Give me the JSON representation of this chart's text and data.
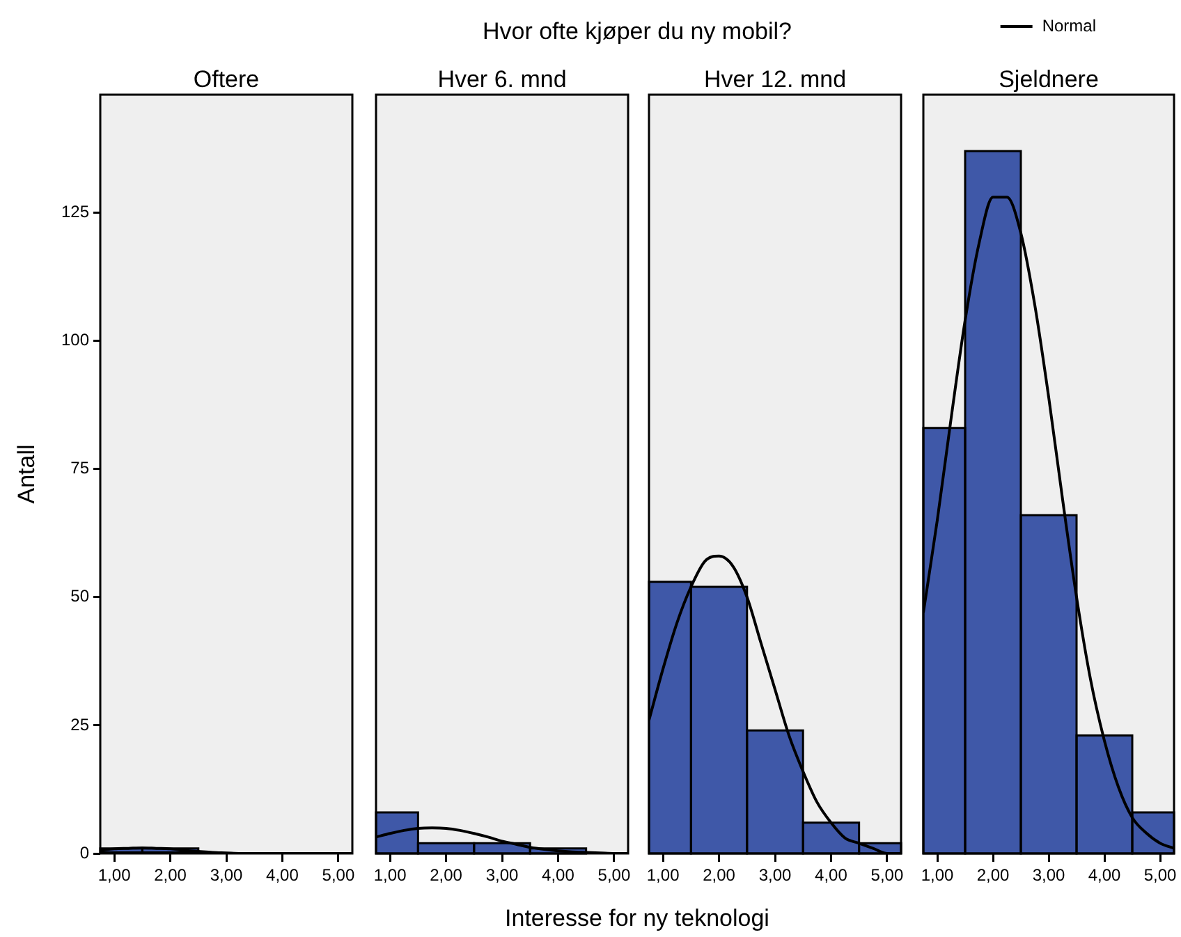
{
  "chart_data": [
    {
      "type": "histogram",
      "title": "Oftere",
      "ylabel": "Antall",
      "annotations": [
        "Hvor ofte kjøper du ny mobil?",
        "Interesse for ny teknologi"
      ],
      "bins": [
        0.75,
        1.5,
        2.5,
        3.5,
        4.5,
        5.25
      ],
      "xlim": [
        0.75,
        5.25
      ],
      "xticks": [
        {
          "value": 1,
          "label": "1,00"
        },
        {
          "value": 2,
          "label": "2,00"
        },
        {
          "value": 3,
          "label": "3,00"
        },
        {
          "value": 4,
          "label": "4,00"
        },
        {
          "value": 5,
          "label": "5,00"
        }
      ],
      "ylim": [
        0,
        148
      ],
      "yticks": [
        0,
        25,
        50,
        75,
        100,
        125
      ],
      "series": [
        {
          "color": "#3f58a8",
          "values": [
            1,
            1,
            0,
            0,
            0
          ]
        },
        {
          "type": "line",
          "color": "#000000",
          "x": [
            0.75,
            1,
            1.25,
            1.5,
            1.75,
            2,
            2.25,
            2.5,
            2.75,
            3,
            3.25,
            3.5,
            3.75,
            4,
            4.25,
            4.5,
            4.75,
            5,
            5.25
          ],
          "values": [
            0.6,
            0.9,
            1.0,
            1.1,
            1.0,
            0.9,
            0.6,
            0.4,
            0.2,
            0.1,
            0,
            0,
            0,
            0,
            0,
            0,
            0,
            0,
            0
          ]
        }
      ]
    },
    {
      "type": "histogram",
      "title": "Hver 6. mnd",
      "bins": [
        0.75,
        1.5,
        2.5,
        3.5,
        4.5,
        5.25
      ],
      "xlim": [
        0.75,
        5.25
      ],
      "xticks": [
        {
          "value": 1,
          "label": "1,00"
        },
        {
          "value": 2,
          "label": "2,00"
        },
        {
          "value": 3,
          "label": "3,00"
        },
        {
          "value": 4,
          "label": "4,00"
        },
        {
          "value": 5,
          "label": "5,00"
        }
      ],
      "ylim": [
        0,
        148
      ],
      "tick_labels": "x",
      "series": [
        {
          "color": "#3f58a8",
          "values": [
            8,
            2,
            2,
            1,
            0
          ]
        },
        {
          "type": "line",
          "color": "#000000",
          "x": [
            0.75,
            1,
            1.25,
            1.5,
            1.75,
            2,
            2.25,
            2.5,
            2.75,
            3,
            3.25,
            3.5,
            3.75,
            4,
            4.25,
            4.5,
            4.75,
            5,
            5.25
          ],
          "values": [
            3.2,
            3.9,
            4.5,
            4.9,
            5,
            4.9,
            4.5,
            3.9,
            3.2,
            2.4,
            1.8,
            1.2,
            0.8,
            0.5,
            0.3,
            0.2,
            0.1,
            0,
            0
          ]
        }
      ]
    },
    {
      "type": "histogram",
      "title": "Hver 12. mnd",
      "bins": [
        0.75,
        1.5,
        2.5,
        3.5,
        4.5,
        5.25
      ],
      "xlim": [
        0.75,
        5.25
      ],
      "xticks": [
        {
          "value": 1,
          "label": "1,00"
        },
        {
          "value": 2,
          "label": "2,00"
        },
        {
          "value": 3,
          "label": "3,00"
        },
        {
          "value": 4,
          "label": "4,00"
        },
        {
          "value": 5,
          "label": "5,00"
        }
      ],
      "ylim": [
        0,
        148
      ],
      "tick_labels": "x",
      "series": [
        {
          "color": "#3f58a8",
          "values": [
            53,
            52,
            24,
            6,
            2
          ]
        },
        {
          "type": "line",
          "color": "#000000",
          "x": [
            0.75,
            1,
            1.25,
            1.5,
            1.75,
            2,
            2.25,
            2.5,
            2.75,
            3,
            3.25,
            3.5,
            3.75,
            4,
            4.25,
            4.5,
            4.75,
            5,
            5.25
          ],
          "values": [
            26,
            36,
            45,
            52,
            57,
            58,
            56,
            50,
            41,
            32,
            23,
            16,
            10,
            6,
            3,
            2,
            1,
            0,
            0
          ]
        }
      ]
    },
    {
      "type": "histogram",
      "title": "Sjeldnere",
      "bins": [
        0.75,
        1.5,
        2.5,
        3.5,
        4.5,
        5.25
      ],
      "xlim": [
        0.75,
        5.25
      ],
      "xticks": [
        {
          "value": 1,
          "label": "1,00"
        },
        {
          "value": 2,
          "label": "2,00"
        },
        {
          "value": 3,
          "label": "3,00"
        },
        {
          "value": 4,
          "label": "4,00"
        },
        {
          "value": 5,
          "label": "5,00"
        }
      ],
      "ylim": [
        0,
        148
      ],
      "tick_labels": "x",
      "legend": "top right",
      "series": [
        {
          "color": "#3f58a8",
          "values": [
            83,
            137,
            66,
            23,
            8
          ]
        },
        {
          "type": "line",
          "name": "Normal",
          "color": "#000000",
          "x": [
            0.75,
            1,
            1.25,
            1.5,
            1.75,
            2,
            2.25,
            2.5,
            2.75,
            3,
            3.25,
            3.5,
            3.75,
            4,
            4.25,
            4.5,
            4.75,
            5,
            5.25
          ],
          "values": [
            47,
            65,
            85,
            104,
            119,
            128,
            128,
            121,
            107,
            89,
            69,
            50,
            34,
            22,
            13,
            7,
            4,
            2,
            1
          ]
        }
      ]
    }
  ]
}
